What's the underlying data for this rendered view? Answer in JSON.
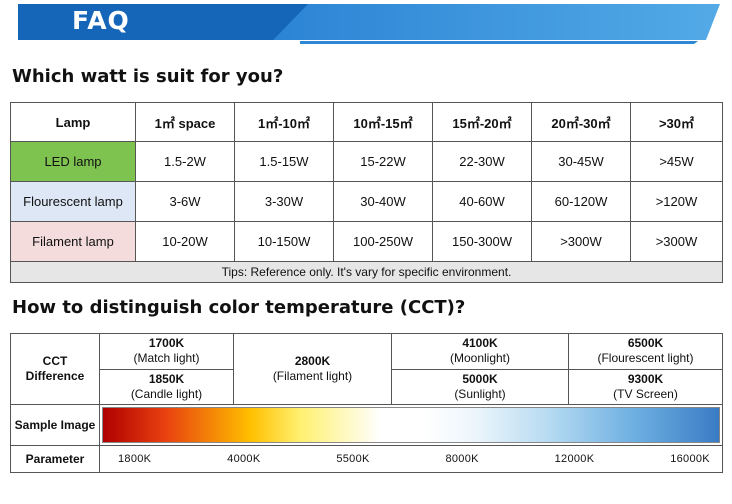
{
  "banner": {
    "title": "FAQ"
  },
  "section1": {
    "heading": "Which watt is suit for you?",
    "header": [
      "Lamp",
      "1㎡ space",
      "1㎡-10㎡",
      "10㎡-15㎡",
      "15㎡-20㎡",
      "20㎡-30㎡",
      ">30㎡"
    ],
    "rows": [
      {
        "lamp": "LED lamp",
        "values": [
          "1.5-2W",
          "1.5-15W",
          "15-22W",
          "22-30W",
          "30-45W",
          ">45W"
        ],
        "color": "#7ec24f"
      },
      {
        "lamp": "Flourescent lamp",
        "values": [
          "3-6W",
          "3-30W",
          "30-40W",
          "40-60W",
          "60-120W",
          ">120W"
        ],
        "color": "#dde7f5"
      },
      {
        "lamp": "Filament lamp",
        "values": [
          "10-20W",
          "10-150W",
          "100-250W",
          "150-300W",
          ">300W",
          ">300W"
        ],
        "color": "#f4dcdc"
      }
    ],
    "tips": "Tips: Reference only. It's vary for specific environment."
  },
  "section2": {
    "heading": "How to distinguish color temperature (CCT)?",
    "cct_label_1": "CCT",
    "cct_label_2": "Difference",
    "sample_label": "Sample Image",
    "param_label": "Parameter",
    "cells": {
      "k1700": "1700K",
      "d1700": "(Match light)",
      "k1850": "1850K",
      "d1850": "(Candle light)",
      "k2800": "2800K",
      "d2800": "(Filament light)",
      "k4100": "4100K",
      "d4100": "(Moonlight)",
      "k5000": "5000K",
      "d5000": "(Sunlight)",
      "k6500": "6500K",
      "d6500": "(Flourescent light)",
      "k9300": "9300K",
      "d9300": "(TV Screen)"
    },
    "parameters": [
      "1800K",
      "4000K",
      "5500K",
      "8000K",
      "12000K",
      "16000K"
    ]
  }
}
